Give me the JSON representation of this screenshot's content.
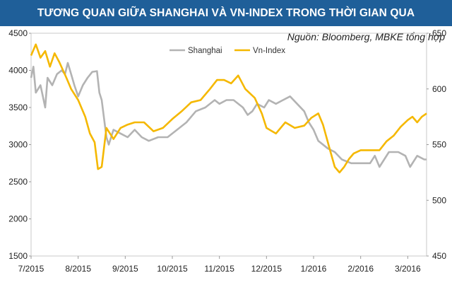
{
  "title": "TƯƠNG QUAN GIỮA SHANGHAI VÀ VN-INDEX TRONG THỜI GIAN QUA",
  "source": "Nguồn: Bloomberg, MBKE tổng hợp",
  "colors": {
    "banner": "#1f5f99",
    "shanghai": "#b3b3b3",
    "vnindex": "#f5b800"
  },
  "chart_data": {
    "type": "line",
    "title": "TƯƠNG QUAN GIỮA SHANGHAI VÀ VN-INDEX TRONG THỜI GIAN QUA",
    "x_tick_labels": [
      "7/2015",
      "8/2015",
      "9/2015",
      "10/2015",
      "11/2015",
      "12/2015",
      "1/2016",
      "2/2016",
      "3/2016"
    ],
    "x_range": [
      0,
      8.4
    ],
    "y_left": {
      "min": 1500,
      "max": 4500,
      "ticks": [
        1500,
        2000,
        2500,
        3000,
        3500,
        4000,
        4500
      ]
    },
    "y_right": {
      "min": 450,
      "max": 650,
      "ticks": [
        450,
        500,
        550,
        600,
        650
      ]
    },
    "legend": {
      "position": "top-center",
      "entries": [
        "Shanghai",
        "Vn-Index"
      ]
    },
    "series": [
      {
        "name": "Shanghai",
        "axis": "left",
        "points": [
          [
            0.0,
            3900
          ],
          [
            0.05,
            4050
          ],
          [
            0.1,
            3700
          ],
          [
            0.2,
            3800
          ],
          [
            0.25,
            3650
          ],
          [
            0.3,
            3500
          ],
          [
            0.35,
            3900
          ],
          [
            0.45,
            3800
          ],
          [
            0.55,
            3950
          ],
          [
            0.65,
            4000
          ],
          [
            0.72,
            3950
          ],
          [
            0.78,
            4100
          ],
          [
            0.85,
            3950
          ],
          [
            0.92,
            3800
          ],
          [
            1.0,
            3650
          ],
          [
            1.1,
            3800
          ],
          [
            1.2,
            3900
          ],
          [
            1.3,
            3980
          ],
          [
            1.4,
            3990
          ],
          [
            1.45,
            3700
          ],
          [
            1.5,
            3600
          ],
          [
            1.6,
            3100
          ],
          [
            1.65,
            3000
          ],
          [
            1.75,
            3200
          ],
          [
            1.9,
            3150
          ],
          [
            2.05,
            3100
          ],
          [
            2.2,
            3200
          ],
          [
            2.35,
            3100
          ],
          [
            2.5,
            3050
          ],
          [
            2.7,
            3100
          ],
          [
            2.9,
            3100
          ],
          [
            3.1,
            3200
          ],
          [
            3.3,
            3300
          ],
          [
            3.5,
            3450
          ],
          [
            3.7,
            3500
          ],
          [
            3.9,
            3600
          ],
          [
            4.0,
            3550
          ],
          [
            4.15,
            3600
          ],
          [
            4.3,
            3600
          ],
          [
            4.5,
            3500
          ],
          [
            4.6,
            3400
          ],
          [
            4.7,
            3450
          ],
          [
            4.8,
            3550
          ],
          [
            4.95,
            3500
          ],
          [
            5.05,
            3600
          ],
          [
            5.2,
            3550
          ],
          [
            5.35,
            3600
          ],
          [
            5.5,
            3650
          ],
          [
            5.65,
            3550
          ],
          [
            5.8,
            3450
          ],
          [
            5.9,
            3300
          ],
          [
            6.0,
            3200
          ],
          [
            6.1,
            3050
          ],
          [
            6.3,
            2950
          ],
          [
            6.45,
            2900
          ],
          [
            6.6,
            2800
          ],
          [
            6.8,
            2750
          ],
          [
            7.0,
            2750
          ],
          [
            7.2,
            2750
          ],
          [
            7.3,
            2850
          ],
          [
            7.4,
            2700
          ],
          [
            7.5,
            2800
          ],
          [
            7.6,
            2900
          ],
          [
            7.8,
            2900
          ],
          [
            7.95,
            2850
          ],
          [
            8.05,
            2700
          ],
          [
            8.2,
            2850
          ],
          [
            8.35,
            2800
          ],
          [
            8.4,
            2800
          ]
        ]
      },
      {
        "name": "Vn-Index",
        "axis": "right",
        "points": [
          [
            0.0,
            630
          ],
          [
            0.1,
            640
          ],
          [
            0.2,
            628
          ],
          [
            0.3,
            634
          ],
          [
            0.4,
            620
          ],
          [
            0.5,
            632
          ],
          [
            0.6,
            624
          ],
          [
            0.75,
            610
          ],
          [
            0.85,
            600
          ],
          [
            1.0,
            590
          ],
          [
            1.15,
            575
          ],
          [
            1.25,
            560
          ],
          [
            1.35,
            552
          ],
          [
            1.42,
            528
          ],
          [
            1.5,
            530
          ],
          [
            1.6,
            565
          ],
          [
            1.75,
            555
          ],
          [
            1.9,
            565
          ],
          [
            2.05,
            568
          ],
          [
            2.2,
            570
          ],
          [
            2.4,
            570
          ],
          [
            2.6,
            562
          ],
          [
            2.8,
            565
          ],
          [
            3.0,
            573
          ],
          [
            3.2,
            580
          ],
          [
            3.4,
            588
          ],
          [
            3.6,
            590
          ],
          [
            3.8,
            600
          ],
          [
            3.95,
            608
          ],
          [
            4.1,
            608
          ],
          [
            4.25,
            605
          ],
          [
            4.4,
            612
          ],
          [
            4.55,
            600
          ],
          [
            4.75,
            592
          ],
          [
            4.9,
            578
          ],
          [
            5.0,
            565
          ],
          [
            5.2,
            560
          ],
          [
            5.4,
            570
          ],
          [
            5.6,
            565
          ],
          [
            5.8,
            567
          ],
          [
            5.95,
            574
          ],
          [
            6.1,
            578
          ],
          [
            6.2,
            568
          ],
          [
            6.35,
            545
          ],
          [
            6.45,
            530
          ],
          [
            6.55,
            525
          ],
          [
            6.65,
            530
          ],
          [
            6.75,
            537
          ],
          [
            6.85,
            542
          ],
          [
            7.0,
            545
          ],
          [
            7.2,
            545
          ],
          [
            7.4,
            545
          ],
          [
            7.55,
            553
          ],
          [
            7.7,
            558
          ],
          [
            7.85,
            566
          ],
          [
            8.0,
            572
          ],
          [
            8.1,
            575
          ],
          [
            8.2,
            570
          ],
          [
            8.3,
            575
          ],
          [
            8.4,
            578
          ]
        ]
      }
    ]
  }
}
